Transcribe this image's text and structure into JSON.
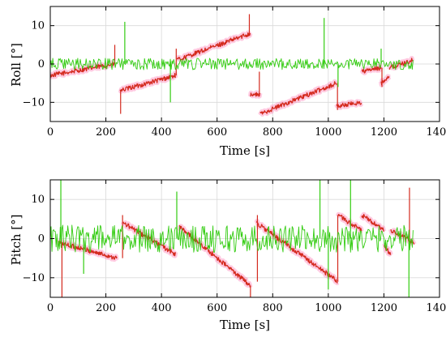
{
  "chart_data": [
    {
      "type": "line",
      "xlabel": "Time [s]",
      "ylabel": "Roll [°]",
      "xlim": [
        0,
        1400
      ],
      "ylim": [
        -15,
        15
      ],
      "xticks": [
        0,
        200,
        400,
        600,
        800,
        1000,
        1200,
        1400
      ],
      "yticks": [
        -10,
        0,
        10
      ],
      "grid": true,
      "series": [
        {
          "color": "#d42a1e",
          "highlight": "#ff66aa",
          "segments": [
            {
              "x": [
                0,
                230
              ],
              "y": [
                -3,
                0
              ]
            },
            {
              "x": [
                250,
                450
              ],
              "y": [
                -7,
                -3
              ]
            },
            {
              "x": [
                455,
                720
              ],
              "y": [
                1,
                8
              ]
            },
            {
              "x": [
                720,
                755
              ],
              "y": [
                -8,
                -8
              ]
            },
            {
              "x": [
                755,
                1030
              ],
              "y": [
                -13,
                -5
              ]
            },
            {
              "x": [
                1030,
                1120
              ],
              "y": [
                -11,
                -10
              ]
            },
            {
              "x": [
                1120,
                1190
              ],
              "y": [
                -2,
                -1
              ]
            },
            {
              "x": [
                1190,
                1220
              ],
              "y": [
                -5,
                -3
              ]
            },
            {
              "x": [
                1220,
                1305
              ],
              "y": [
                -1,
                1
              ]
            }
          ],
          "spikes": [
            {
              "x": 232,
              "from": 0,
              "to": 5
            },
            {
              "x": 253,
              "from": -7,
              "to": -13
            },
            {
              "x": 453,
              "from": -3,
              "to": 4
            },
            {
              "x": 716,
              "from": 8,
              "to": 13
            },
            {
              "x": 752,
              "from": -8,
              "to": -2
            },
            {
              "x": 1033,
              "from": -5,
              "to": -12
            },
            {
              "x": 1193,
              "from": -1,
              "to": -6
            }
          ]
        },
        {
          "color": "#33cc11",
          "segments": [
            {
              "x": [
                0,
                1305
              ],
              "y": [
                0,
                0
              ],
              "noise": 1.5
            }
          ],
          "spikes": [
            {
              "x": 268,
              "from": 0,
              "to": 11
            },
            {
              "x": 432,
              "from": 0,
              "to": -10
            },
            {
              "x": 985,
              "from": 0,
              "to": 12
            },
            {
              "x": 1035,
              "from": 0,
              "to": -6
            },
            {
              "x": 1190,
              "from": 0,
              "to": 4
            }
          ]
        }
      ]
    },
    {
      "type": "line",
      "xlabel": "Time [s]",
      "ylabel": "Pitch [°]",
      "xlim": [
        0,
        1400
      ],
      "ylim": [
        -15,
        15
      ],
      "xticks": [
        0,
        200,
        400,
        600,
        800,
        1000,
        1200,
        1400
      ],
      "yticks": [
        -10,
        0,
        10
      ],
      "grid": true,
      "series": [
        {
          "color": "#d42a1e",
          "highlight": "#ff66aa",
          "segments": [
            {
              "x": [
                30,
                240
              ],
              "y": [
                -1,
                -5
              ]
            },
            {
              "x": [
                262,
                450
              ],
              "y": [
                4,
                -4
              ]
            },
            {
              "x": [
                465,
                720
              ],
              "y": [
                3,
                -12
              ]
            },
            {
              "x": [
                742,
                1035
              ],
              "y": [
                4,
                -11
              ]
            },
            {
              "x": [
                1035,
                1120
              ],
              "y": [
                6,
                2
              ]
            },
            {
              "x": [
                1120,
                1200
              ],
              "y": [
                6,
                2
              ]
            },
            {
              "x": [
                1200,
                1225
              ],
              "y": [
                -2,
                -4
              ]
            },
            {
              "x": [
                1225,
                1310
              ],
              "y": [
                2,
                -1
              ]
            }
          ],
          "spikes": [
            {
              "x": 42,
              "from": -1,
              "to": -15
            },
            {
              "x": 260,
              "from": -5,
              "to": 6
            },
            {
              "x": 720,
              "from": -12,
              "to": -15
            },
            {
              "x": 745,
              "from": -11,
              "to": 6
            },
            {
              "x": 1034,
              "from": -11,
              "to": 6
            },
            {
              "x": 1292,
              "from": -1,
              "to": 13
            }
          ]
        },
        {
          "color": "#33cc11",
          "segments": [
            {
              "x": [
                0,
                1305
              ],
              "y": [
                0,
                0
              ],
              "noise": 3.5
            }
          ],
          "spikes": [
            {
              "x": 38,
              "from": 0,
              "to": 15
            },
            {
              "x": 120,
              "from": 0,
              "to": -9
            },
            {
              "x": 455,
              "from": 0,
              "to": 12
            },
            {
              "x": 970,
              "from": 0,
              "to": 15
            },
            {
              "x": 1000,
              "from": 0,
              "to": -13
            },
            {
              "x": 1080,
              "from": 0,
              "to": 15
            },
            {
              "x": 1290,
              "from": 0,
              "to": -15
            }
          ]
        }
      ]
    }
  ]
}
